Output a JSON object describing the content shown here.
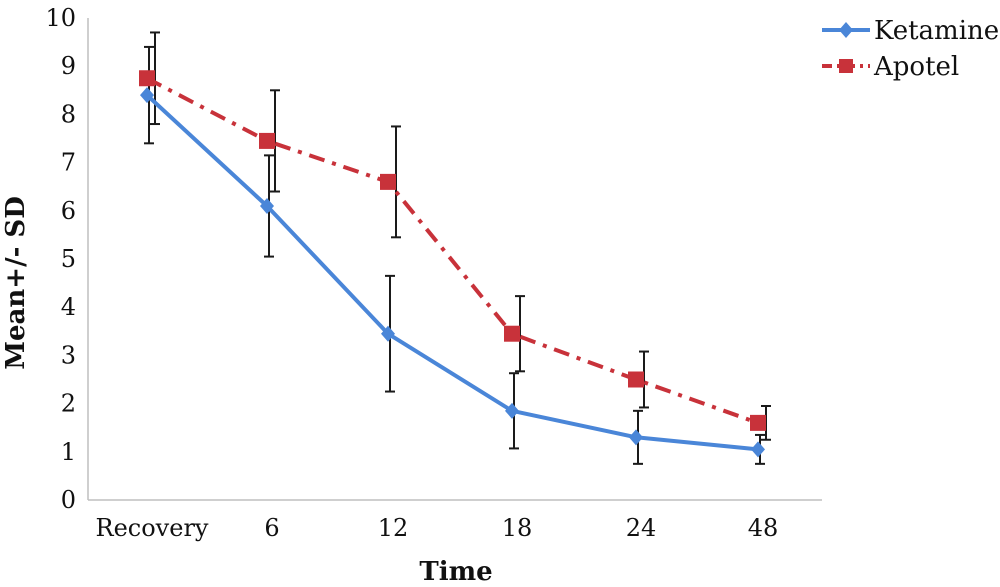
{
  "chart_data": {
    "type": "line",
    "title": "",
    "xlabel": "Time",
    "ylabel": "Mean+/- SD",
    "categories": [
      "Recovery",
      "6",
      "12",
      "18",
      "24",
      "48"
    ],
    "ylim": [
      0,
      10
    ],
    "yticks": [
      0,
      1,
      2,
      3,
      4,
      5,
      6,
      7,
      8,
      9,
      10
    ],
    "grid": false,
    "legend_position": "top-right",
    "series": [
      {
        "name": "Ketamine",
        "color": "#4a86d8",
        "line_style": "solid",
        "marker": "diamond",
        "values": [
          8.4,
          6.1,
          3.45,
          1.85,
          1.3,
          1.05
        ],
        "sd": [
          1.0,
          1.05,
          1.2,
          0.78,
          0.55,
          0.3
        ]
      },
      {
        "name": "Apotel",
        "color": "#c8323a",
        "line_style": "dash-dot",
        "marker": "square",
        "values": [
          8.75,
          7.45,
          6.6,
          3.45,
          2.5,
          1.6
        ],
        "sd": [
          0.95,
          1.05,
          1.15,
          0.78,
          0.58,
          0.35
        ]
      }
    ]
  }
}
